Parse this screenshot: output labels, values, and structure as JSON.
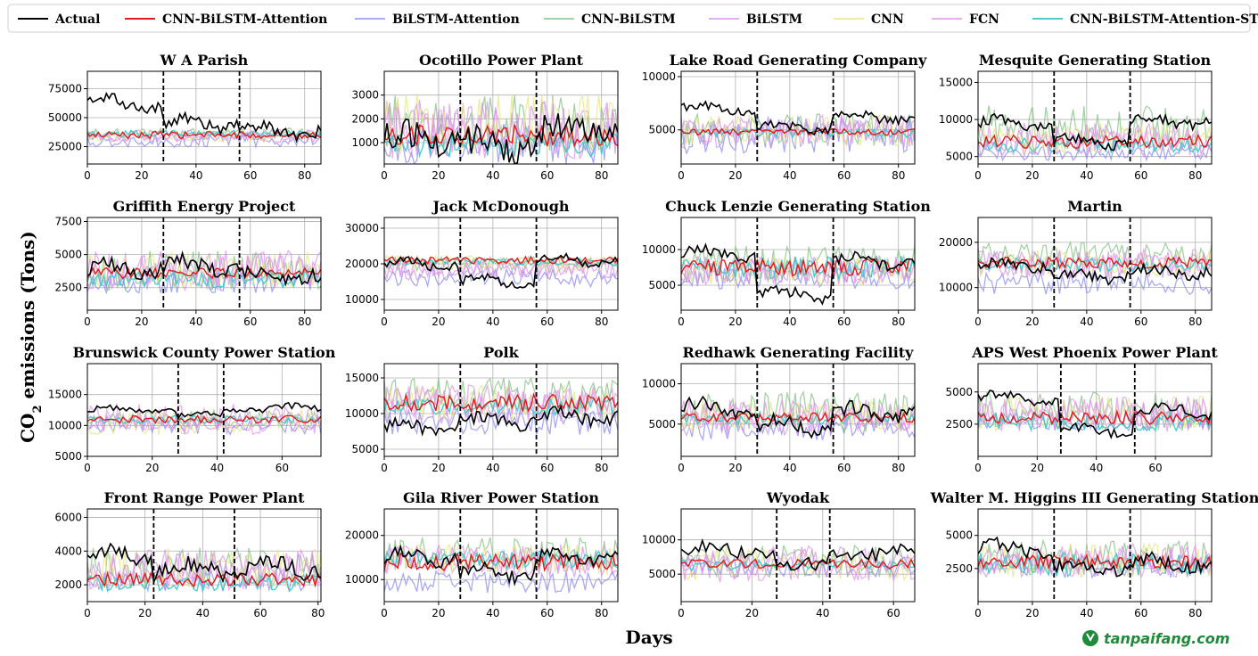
{
  "figure": {
    "ylabel_main": "CO",
    "ylabel_sub": "2",
    "ylabel_rest": " emissions (Tons)",
    "xlabel": "Days",
    "watermark": "tanpaifang.com"
  },
  "legend": [
    {
      "name": "Actual",
      "color": "#000000",
      "opacity": 1
    },
    {
      "name": "CNN-BiLSTM-Attention",
      "color": "#e31a1c",
      "opacity": 1
    },
    {
      "name": "BiLSTM-Attention",
      "color": "#8c8cf0",
      "opacity": 0.75
    },
    {
      "name": "CNN-BiLSTM",
      "color": "#7fbf7f",
      "opacity": 0.7
    },
    {
      "name": "BiLSTM",
      "color": "#d28ee6",
      "opacity": 0.7
    },
    {
      "name": "CNN",
      "color": "#e6e68a",
      "opacity": 0.75
    },
    {
      "name": "FCN",
      "color": "#e08ee8",
      "opacity": 0.7
    },
    {
      "name": "CNN-BiLSTM-Attention-ST",
      "color": "#3cc8c8",
      "opacity": 0.9
    }
  ],
  "chart_data": [
    {
      "type": "line",
      "title": "W A Parish",
      "xlim": [
        0,
        86
      ],
      "ylim": [
        10000,
        90000
      ],
      "xticks": [
        0,
        20,
        40,
        60,
        80
      ],
      "yticks": [
        25000,
        50000,
        75000
      ],
      "ytick_labels": [
        "25000",
        "50000",
        "75000"
      ],
      "vlines": [
        28,
        56
      ],
      "actual": {
        "base": 45000,
        "amp": 9000,
        "noise": 5000,
        "seg": [
          62000,
          45000,
          38000
        ]
      },
      "preds": [
        {
          "base": 35000,
          "noise": 3000
        },
        {
          "base": 30000,
          "noise": 6000
        },
        {
          "base": 36000,
          "noise": 5000
        },
        {
          "base": 33000,
          "noise": 4500
        },
        {
          "base": 34000,
          "noise": 5000
        },
        {
          "base": 35000,
          "noise": 5000
        },
        {
          "base": 36000,
          "noise": 3000
        }
      ]
    },
    {
      "type": "line",
      "title": "Ocotillo Power Plant",
      "xlim": [
        0,
        86
      ],
      "ylim": [
        100,
        4000
      ],
      "xticks": [
        0,
        20,
        40,
        60,
        80
      ],
      "yticks": [
        1000,
        2000,
        3000
      ],
      "ytick_labels": [
        "1000",
        "2000",
        "3000"
      ],
      "vlines": [
        28,
        56
      ],
      "actual": {
        "base": 1000,
        "amp": 500,
        "noise": 600,
        "seg": [
          1200,
          900,
          1500
        ]
      },
      "preds": [
        {
          "base": 1300,
          "noise": 500
        },
        {
          "base": 1000,
          "noise": 900
        },
        {
          "base": 1800,
          "noise": 1200
        },
        {
          "base": 1600,
          "noise": 1200
        },
        {
          "base": 1800,
          "noise": 1300
        },
        {
          "base": 1500,
          "noise": 1200
        },
        {
          "base": 900,
          "noise": 500
        }
      ]
    },
    {
      "type": "line",
      "title": "Lake Road Generating Company",
      "xlim": [
        0,
        86
      ],
      "ylim": [
        1800,
        10500
      ],
      "xticks": [
        0,
        20,
        40,
        60,
        80
      ],
      "yticks": [
        5000,
        10000
      ],
      "ytick_labels": [
        "5000",
        "10000"
      ],
      "vlines": [
        28,
        56
      ],
      "actual": {
        "base": 6000,
        "amp": 700,
        "noise": 400,
        "seg": [
          7000,
          5200,
          6200
        ]
      },
      "preds": [
        {
          "base": 4800,
          "noise": 300
        },
        {
          "base": 4600,
          "noise": 1800
        },
        {
          "base": 5000,
          "noise": 1500
        },
        {
          "base": 4800,
          "noise": 1500
        },
        {
          "base": 4900,
          "noise": 1500
        },
        {
          "base": 5000,
          "noise": 1400
        },
        {
          "base": 4700,
          "noise": 400
        }
      ]
    },
    {
      "type": "line",
      "title": "Mesquite Generating Station",
      "xlim": [
        0,
        86
      ],
      "ylim": [
        4000,
        16500
      ],
      "xticks": [
        0,
        20,
        40,
        60,
        80
      ],
      "yticks": [
        5000,
        10000,
        15000
      ],
      "ytick_labels": [
        "5000",
        "10000",
        "15000"
      ],
      "vlines": [
        28,
        56
      ],
      "actual": {
        "base": 8500,
        "amp": 1200,
        "noise": 700,
        "seg": [
          9500,
          7000,
          9800
        ]
      },
      "preds": [
        {
          "base": 7000,
          "noise": 900
        },
        {
          "base": 5500,
          "noise": 1000
        },
        {
          "base": 9000,
          "noise": 3000
        },
        {
          "base": 7000,
          "noise": 2000
        },
        {
          "base": 7500,
          "noise": 2000
        },
        {
          "base": 7500,
          "noise": 2000
        },
        {
          "base": 6500,
          "noise": 1000
        }
      ]
    },
    {
      "type": "line",
      "title": "Griffith Energy Project",
      "xlim": [
        0,
        86
      ],
      "ylim": [
        800,
        7800
      ],
      "xticks": [
        0,
        20,
        40,
        60,
        80
      ],
      "yticks": [
        2500,
        5000,
        7500
      ],
      "ytick_labels": [
        "2500",
        "5000",
        "7500"
      ],
      "vlines": [
        28,
        56
      ],
      "actual": {
        "base": 3800,
        "amp": 700,
        "noise": 600,
        "seg": [
          4000,
          4200,
          3500
        ]
      },
      "preds": [
        {
          "base": 3600,
          "noise": 400
        },
        {
          "base": 3000,
          "noise": 900
        },
        {
          "base": 3800,
          "noise": 1500
        },
        {
          "base": 3800,
          "noise": 1500
        },
        {
          "base": 3800,
          "noise": 1400
        },
        {
          "base": 3800,
          "noise": 1400
        },
        {
          "base": 3200,
          "noise": 700
        }
      ]
    },
    {
      "type": "line",
      "title": "Jack McDonough",
      "xlim": [
        0,
        86
      ],
      "ylim": [
        7000,
        33000
      ],
      "xticks": [
        0,
        20,
        40,
        60,
        80
      ],
      "yticks": [
        10000,
        20000,
        30000
      ],
      "ytick_labels": [
        "10000",
        "20000",
        "30000"
      ],
      "vlines": [
        28,
        56
      ],
      "actual": {
        "base": 19000,
        "amp": 2500,
        "noise": 1200,
        "seg": [
          20000,
          15000,
          21000
        ]
      },
      "preds": [
        {
          "base": 21000,
          "noise": 1000
        },
        {
          "base": 16000,
          "noise": 2500
        },
        {
          "base": 20000,
          "noise": 2000
        },
        {
          "base": 18000,
          "noise": 2500
        },
        {
          "base": 20000,
          "noise": 2500
        },
        {
          "base": 19000,
          "noise": 2500
        },
        {
          "base": 20500,
          "noise": 1000
        }
      ]
    },
    {
      "type": "line",
      "title": "Chuck Lenzie Generating Station",
      "xlim": [
        0,
        86
      ],
      "ylim": [
        1500,
        14500
      ],
      "xticks": [
        0,
        20,
        40,
        60,
        80
      ],
      "yticks": [
        5000,
        10000
      ],
      "ytick_labels": [
        "5000",
        "10000"
      ],
      "vlines": [
        28,
        56
      ],
      "actual": {
        "base": 7000,
        "amp": 1500,
        "noise": 800,
        "seg": [
          9500,
          3800,
          8500
        ]
      },
      "preds": [
        {
          "base": 7500,
          "noise": 1200
        },
        {
          "base": 6000,
          "noise": 1500
        },
        {
          "base": 8000,
          "noise": 2500
        },
        {
          "base": 7000,
          "noise": 2000
        },
        {
          "base": 7000,
          "noise": 2000
        },
        {
          "base": 7000,
          "noise": 2000
        },
        {
          "base": 7500,
          "noise": 1800
        }
      ]
    },
    {
      "type": "line",
      "title": "Martin",
      "xlim": [
        0,
        86
      ],
      "ylim": [
        5000,
        25500
      ],
      "xticks": [
        0,
        20,
        40,
        60,
        80
      ],
      "yticks": [
        10000,
        20000
      ],
      "ytick_labels": [
        "10000",
        "20000"
      ],
      "vlines": [
        28,
        56
      ],
      "actual": {
        "base": 13500,
        "amp": 1500,
        "noise": 1200,
        "seg": [
          15000,
          12500,
          13500
        ]
      },
      "preds": [
        {
          "base": 15500,
          "noise": 1200
        },
        {
          "base": 11000,
          "noise": 2500
        },
        {
          "base": 17000,
          "noise": 3000
        },
        {
          "base": 15000,
          "noise": 3000
        },
        {
          "base": 15500,
          "noise": 3000
        },
        {
          "base": 15500,
          "noise": 3000
        },
        {
          "base": 15000,
          "noise": 1500
        }
      ]
    },
    {
      "type": "line",
      "title": "Brunswick County Power Station",
      "xlim": [
        0,
        72
      ],
      "ylim": [
        5000,
        20000
      ],
      "xticks": [
        0,
        20,
        40,
        60
      ],
      "yticks": [
        5000,
        10000,
        15000
      ],
      "ytick_labels": [
        "5000",
        "10000",
        "15000"
      ],
      "vlines": [
        28,
        42
      ],
      "actual": {
        "base": 12000,
        "amp": 800,
        "noise": 500,
        "seg": [
          12500,
          11500,
          12800
        ]
      },
      "preds": [
        {
          "base": 11000,
          "noise": 600
        },
        {
          "base": 10000,
          "noise": 1500
        },
        {
          "base": 11000,
          "noise": 1500
        },
        {
          "base": 10500,
          "noise": 1500
        },
        {
          "base": 10500,
          "noise": 2000
        },
        {
          "base": 11000,
          "noise": 2500
        },
        {
          "base": 11000,
          "noise": 700
        }
      ]
    },
    {
      "type": "line",
      "title": "Polk",
      "xlim": [
        0,
        86
      ],
      "ylim": [
        4000,
        17000
      ],
      "xticks": [
        0,
        20,
        40,
        60,
        80
      ],
      "yticks": [
        5000,
        10000,
        15000
      ],
      "ytick_labels": [
        "5000",
        "10000",
        "15000"
      ],
      "vlines": [
        28,
        56
      ],
      "actual": {
        "base": 8500,
        "amp": 1200,
        "noise": 900,
        "seg": [
          8000,
          9000,
          9500
        ]
      },
      "preds": [
        {
          "base": 11500,
          "noise": 1200
        },
        {
          "base": 9000,
          "noise": 2000
        },
        {
          "base": 12500,
          "noise": 2500
        },
        {
          "base": 11000,
          "noise": 2500
        },
        {
          "base": 11500,
          "noise": 2500
        },
        {
          "base": 11500,
          "noise": 2500
        },
        {
          "base": 11000,
          "noise": 1200
        }
      ]
    },
    {
      "type": "line",
      "title": "Redhawk Generating Facility",
      "xlim": [
        0,
        86
      ],
      "ylim": [
        1000,
        12500
      ],
      "xticks": [
        0,
        20,
        40,
        60,
        80
      ],
      "yticks": [
        5000,
        10000
      ],
      "ytick_labels": [
        "5000",
        "10000"
      ],
      "vlines": [
        28,
        56
      ],
      "actual": {
        "base": 6000,
        "amp": 1200,
        "noise": 900,
        "seg": [
          7000,
          4800,
          6500
        ]
      },
      "preds": [
        {
          "base": 5800,
          "noise": 600
        },
        {
          "base": 4500,
          "noise": 1500
        },
        {
          "base": 6500,
          "noise": 2500
        },
        {
          "base": 5500,
          "noise": 2000
        },
        {
          "base": 6000,
          "noise": 2000
        },
        {
          "base": 6000,
          "noise": 2000
        },
        {
          "base": 5700,
          "noise": 700
        }
      ]
    },
    {
      "type": "line",
      "title": "APS West Phoenix Power Plant",
      "xlim": [
        0,
        79
      ],
      "ylim": [
        0,
        7200
      ],
      "xticks": [
        0,
        20,
        40,
        60
      ],
      "yticks": [
        2500,
        5000
      ],
      "ytick_labels": [
        "2500",
        "5000"
      ],
      "vlines": [
        28,
        53
      ],
      "actual": {
        "base": 3000,
        "amp": 600,
        "noise": 400,
        "seg": [
          4500,
          2000,
          3500
        ]
      },
      "preds": [
        {
          "base": 3000,
          "noise": 500
        },
        {
          "base": 2800,
          "noise": 800
        },
        {
          "base": 3500,
          "noise": 1500
        },
        {
          "base": 3200,
          "noise": 1200
        },
        {
          "base": 3300,
          "noise": 1400
        },
        {
          "base": 3300,
          "noise": 1400
        },
        {
          "base": 2700,
          "noise": 700
        }
      ]
    },
    {
      "type": "line",
      "title": "Front Range Power Plant",
      "xlim": [
        0,
        81
      ],
      "ylim": [
        1000,
        6500
      ],
      "xticks": [
        0,
        20,
        40,
        60,
        80
      ],
      "yticks": [
        2000,
        4000,
        6000
      ],
      "ytick_labels": [
        "2000",
        "4000",
        "6000"
      ],
      "vlines": [
        23,
        51
      ],
      "actual": {
        "base": 3200,
        "amp": 600,
        "noise": 500,
        "seg": [
          3800,
          2900,
          3000
        ]
      },
      "preds": [
        {
          "base": 2300,
          "noise": 400
        },
        {
          "base": 2200,
          "noise": 600
        },
        {
          "base": 3000,
          "noise": 1200
        },
        {
          "base": 2800,
          "noise": 1200
        },
        {
          "base": 3000,
          "noise": 1200
        },
        {
          "base": 2900,
          "noise": 1200
        },
        {
          "base": 2100,
          "noise": 500
        }
      ]
    },
    {
      "type": "line",
      "title": "Gila River Power Station",
      "xlim": [
        0,
        86
      ],
      "ylim": [
        5000,
        26000
      ],
      "xticks": [
        0,
        20,
        40,
        60,
        80
      ],
      "yticks": [
        10000,
        20000
      ],
      "ytick_labels": [
        "10000",
        "20000"
      ],
      "vlines": [
        28,
        56
      ],
      "actual": {
        "base": 13500,
        "amp": 2000,
        "noise": 1500,
        "seg": [
          15000,
          11500,
          15000
        ]
      },
      "preds": [
        {
          "base": 14000,
          "noise": 2000
        },
        {
          "base": 9500,
          "noise": 2500
        },
        {
          "base": 16000,
          "noise": 3500
        },
        {
          "base": 14000,
          "noise": 3500
        },
        {
          "base": 14500,
          "noise": 3500
        },
        {
          "base": 14500,
          "noise": 3500
        },
        {
          "base": 14500,
          "noise": 2000
        }
      ]
    },
    {
      "type": "line",
      "title": "Wyodak",
      "xlim": [
        0,
        66
      ],
      "ylim": [
        1000,
        14500
      ],
      "xticks": [
        0,
        20,
        40,
        60
      ],
      "yticks": [
        5000,
        10000
      ],
      "ytick_labels": [
        "5000",
        "10000"
      ],
      "vlines": [
        27,
        42
      ],
      "actual": {
        "base": 7500,
        "amp": 1200,
        "noise": 1000,
        "seg": [
          8500,
          6000,
          8000
        ]
      },
      "preds": [
        {
          "base": 6500,
          "noise": 700
        },
        {
          "base": 6000,
          "noise": 1500
        },
        {
          "base": 7000,
          "noise": 2500
        },
        {
          "base": 6500,
          "noise": 2500
        },
        {
          "base": 6500,
          "noise": 2500
        },
        {
          "base": 6500,
          "noise": 2800
        },
        {
          "base": 6300,
          "noise": 800
        }
      ]
    },
    {
      "type": "line",
      "title": "Walter M. Higgins III Generating Station",
      "xlim": [
        0,
        86
      ],
      "ylim": [
        0,
        7000
      ],
      "xticks": [
        0,
        20,
        40,
        60,
        80
      ],
      "yticks": [
        2500,
        5000
      ],
      "ytick_labels": [
        "2500",
        "5000"
      ],
      "vlines": [
        28,
        56
      ],
      "actual": {
        "base": 3000,
        "amp": 700,
        "noise": 500,
        "seg": [
          4000,
          2600,
          2900
        ]
      },
      "preds": [
        {
          "base": 3000,
          "noise": 500
        },
        {
          "base": 2700,
          "noise": 900
        },
        {
          "base": 3300,
          "noise": 1300
        },
        {
          "base": 3000,
          "noise": 1200
        },
        {
          "base": 3100,
          "noise": 1300
        },
        {
          "base": 3100,
          "noise": 1300
        },
        {
          "base": 2800,
          "noise": 900
        }
      ]
    }
  ]
}
